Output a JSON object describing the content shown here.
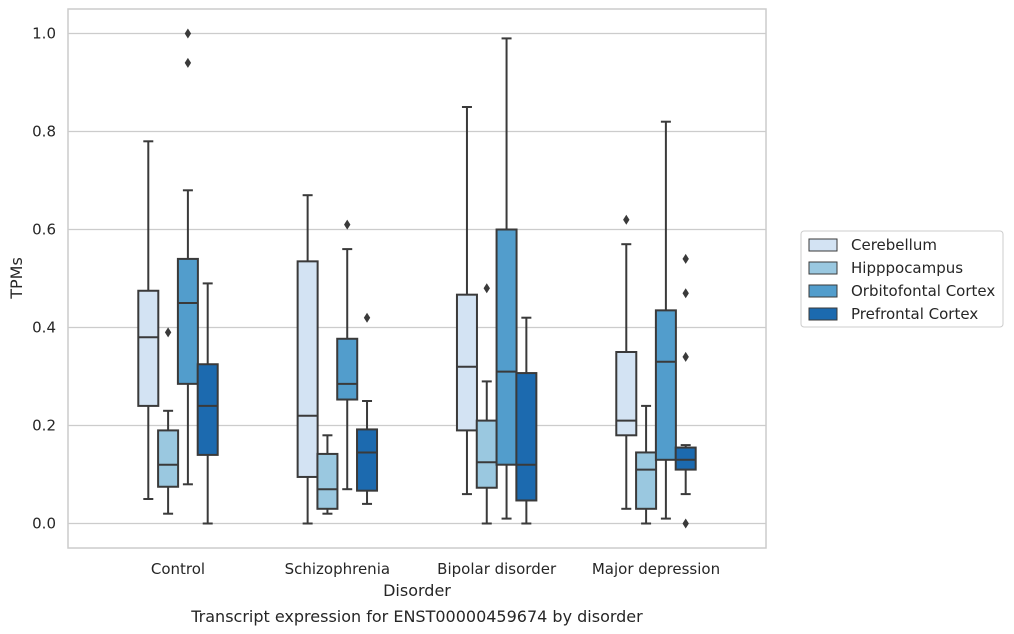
{
  "chart_data": {
    "type": "box",
    "title": "",
    "caption": "Transcript expression for ENST00000459674 by disorder",
    "xlabel": "Disorder",
    "ylabel": "TPMs",
    "ylim": [
      -0.05,
      1.05
    ],
    "yticks": [
      0.0,
      0.2,
      0.4,
      0.6,
      0.8,
      1.0
    ],
    "ytick_labels": [
      "0.0",
      "0.2",
      "0.4",
      "0.6",
      "0.8",
      "1.0"
    ],
    "grid": "horizontal",
    "legend_position": "right",
    "categories": [
      "Control",
      "Schizophrenia",
      "Bipolar disorder",
      "Major depression"
    ],
    "series": [
      {
        "name": "Cerebellum",
        "color": "#d3e3f3",
        "boxes": [
          {
            "whisker_low": 0.05,
            "q1": 0.24,
            "median": 0.38,
            "q3": 0.475,
            "whisker_high": 0.78,
            "outliers": []
          },
          {
            "whisker_low": 0.0,
            "q1": 0.095,
            "median": 0.22,
            "q3": 0.535,
            "whisker_high": 0.67,
            "outliers": []
          },
          {
            "whisker_low": 0.06,
            "q1": 0.19,
            "median": 0.32,
            "q3": 0.467,
            "whisker_high": 0.85,
            "outliers": []
          },
          {
            "whisker_low": 0.03,
            "q1": 0.18,
            "median": 0.21,
            "q3": 0.35,
            "whisker_high": 0.57,
            "outliers": [
              0.62
            ]
          }
        ]
      },
      {
        "name": "Hipppocampus",
        "color": "#9ac8e0",
        "boxes": [
          {
            "whisker_low": 0.02,
            "q1": 0.075,
            "median": 0.12,
            "q3": 0.19,
            "whisker_high": 0.23,
            "outliers": [
              0.39
            ]
          },
          {
            "whisker_low": 0.02,
            "q1": 0.03,
            "median": 0.07,
            "q3": 0.142,
            "whisker_high": 0.18,
            "outliers": []
          },
          {
            "whisker_low": 0.0,
            "q1": 0.073,
            "median": 0.125,
            "q3": 0.21,
            "whisker_high": 0.29,
            "outliers": [
              0.48
            ]
          },
          {
            "whisker_low": 0.0,
            "q1": 0.03,
            "median": 0.11,
            "q3": 0.145,
            "whisker_high": 0.24,
            "outliers": []
          }
        ]
      },
      {
        "name": "Orbitofontal Cortex",
        "color": "#529dcc",
        "boxes": [
          {
            "whisker_low": 0.08,
            "q1": 0.285,
            "median": 0.45,
            "q3": 0.54,
            "whisker_high": 0.68,
            "outliers": [
              0.94,
              1.0
            ]
          },
          {
            "whisker_low": 0.07,
            "q1": 0.253,
            "median": 0.285,
            "q3": 0.377,
            "whisker_high": 0.56,
            "outliers": [
              0.61
            ]
          },
          {
            "whisker_low": 0.01,
            "q1": 0.12,
            "median": 0.31,
            "q3": 0.6,
            "whisker_high": 0.99,
            "outliers": []
          },
          {
            "whisker_low": 0.01,
            "q1": 0.13,
            "median": 0.33,
            "q3": 0.435,
            "whisker_high": 0.82,
            "outliers": []
          }
        ]
      },
      {
        "name": "Prefrontal Cortex",
        "color": "#1c6aaf",
        "boxes": [
          {
            "whisker_low": 0.0,
            "q1": 0.14,
            "median": 0.24,
            "q3": 0.325,
            "whisker_high": 0.49,
            "outliers": []
          },
          {
            "whisker_low": 0.04,
            "q1": 0.067,
            "median": 0.145,
            "q3": 0.192,
            "whisker_high": 0.25,
            "outliers": [
              0.42
            ]
          },
          {
            "whisker_low": 0.0,
            "q1": 0.047,
            "median": 0.12,
            "q3": 0.307,
            "whisker_high": 0.42,
            "outliers": []
          },
          {
            "whisker_low": 0.06,
            "q1": 0.11,
            "median": 0.13,
            "q3": 0.155,
            "whisker_high": 0.16,
            "outliers": [
              0.0,
              0.34,
              0.47,
              0.54
            ]
          }
        ]
      }
    ]
  }
}
